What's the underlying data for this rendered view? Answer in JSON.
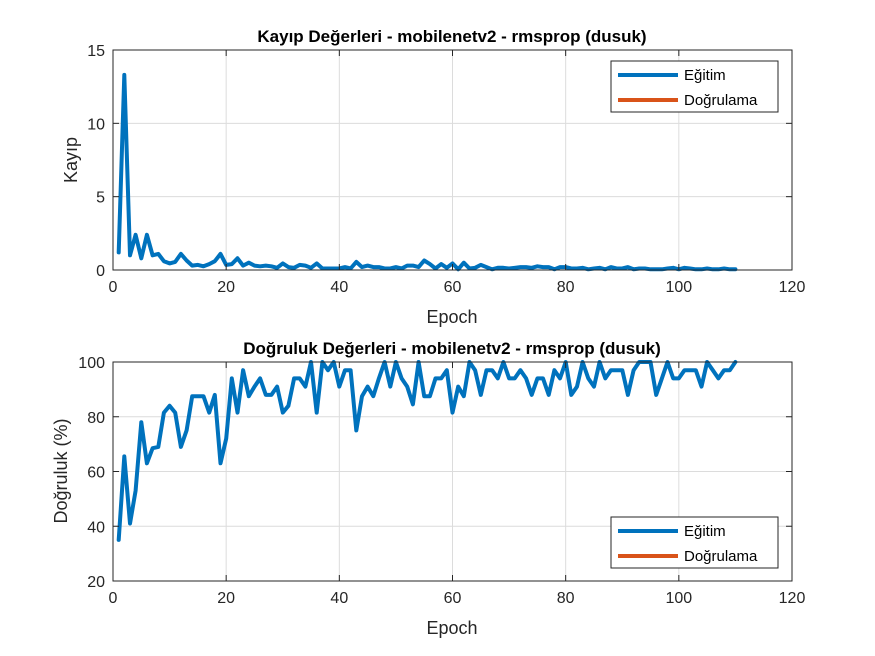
{
  "colors": {
    "train": "#0072BD",
    "val": "#D95319",
    "grid": "#dcdcdc",
    "axis": "#262626"
  },
  "chart_data": [
    {
      "type": "line",
      "title": "Kayıp Değerleri - mobilenetv2 - rmsprop (dusuk)",
      "xlabel": "Epoch",
      "ylabel": "Kayıp",
      "xlim": [
        0,
        120
      ],
      "ylim": [
        0,
        15
      ],
      "xticks": [
        0,
        20,
        40,
        60,
        80,
        100,
        120
      ],
      "yticks": [
        0,
        5,
        10,
        15
      ],
      "grid": true,
      "legend_position": "top-right",
      "legend": [
        "Eğitim",
        "Doğrulama"
      ],
      "series": [
        {
          "name": "Eğitim",
          "x": [
            1,
            2,
            3,
            4,
            5,
            6,
            7,
            8,
            9,
            10,
            11,
            12,
            13,
            14,
            15,
            16,
            17,
            18,
            19,
            20,
            21,
            22,
            23,
            24,
            25,
            26,
            27,
            28,
            29,
            30,
            31,
            32,
            33,
            34,
            35,
            36,
            37,
            38,
            39,
            40,
            41,
            42,
            43,
            44,
            45,
            46,
            47,
            48,
            49,
            50,
            51,
            52,
            53,
            54,
            55,
            56,
            57,
            58,
            59,
            60,
            61,
            62,
            63,
            64,
            65,
            66,
            67,
            68,
            69,
            70,
            71,
            72,
            73,
            74,
            75,
            76,
            77,
            78,
            79,
            80,
            81,
            82,
            83,
            84,
            85,
            86,
            87,
            88,
            89,
            90,
            91,
            92,
            93,
            94,
            95,
            96,
            97,
            98,
            99,
            100,
            101,
            102,
            103,
            104,
            105,
            106,
            107,
            108,
            109,
            110
          ],
          "y": [
            1.2,
            13.3,
            1.0,
            2.4,
            0.8,
            2.4,
            1.0,
            1.1,
            0.6,
            0.45,
            0.55,
            1.1,
            0.65,
            0.3,
            0.35,
            0.25,
            0.4,
            0.6,
            1.1,
            0.35,
            0.4,
            0.8,
            0.3,
            0.5,
            0.3,
            0.25,
            0.3,
            0.25,
            0.15,
            0.45,
            0.2,
            0.15,
            0.35,
            0.3,
            0.15,
            0.45,
            0.1,
            0.1,
            0.1,
            0.1,
            0.2,
            0.1,
            0.55,
            0.2,
            0.3,
            0.2,
            0.2,
            0.1,
            0.1,
            0.2,
            0.1,
            0.3,
            0.3,
            0.2,
            0.65,
            0.4,
            0.1,
            0.4,
            0.15,
            0.45,
            0.05,
            0.5,
            0.1,
            0.15,
            0.35,
            0.2,
            0.05,
            0.15,
            0.15,
            0.1,
            0.15,
            0.2,
            0.2,
            0.15,
            0.25,
            0.2,
            0.2,
            0.05,
            0.2,
            0.2,
            0.1,
            0.1,
            0.15,
            0.05,
            0.1,
            0.15,
            0.05,
            0.2,
            0.1,
            0.1,
            0.2,
            0.05,
            0.1,
            0.1,
            0.05,
            0.05,
            0.05,
            0.1,
            0.15,
            0.05,
            0.15,
            0.1,
            0.05,
            0.05,
            0.1,
            0.05,
            0.05,
            0.1,
            0.05,
            0.05
          ]
        },
        {
          "name": "Doğrulama",
          "x": [],
          "y": []
        }
      ]
    },
    {
      "type": "line",
      "title": "Doğruluk Değerleri - mobilenetv2 - rmsprop (dusuk)",
      "xlabel": "Epoch",
      "ylabel": "Doğruluk (%)",
      "xlim": [
        0,
        120
      ],
      "ylim": [
        20,
        100
      ],
      "xticks": [
        0,
        20,
        40,
        60,
        80,
        100,
        120
      ],
      "yticks": [
        20,
        40,
        60,
        80,
        100
      ],
      "grid": true,
      "legend_position": "bottom-right",
      "legend": [
        "Eğitim",
        "Doğrulama"
      ],
      "series": [
        {
          "name": "Eğitim",
          "x": [
            1,
            2,
            3,
            4,
            5,
            6,
            7,
            8,
            9,
            10,
            11,
            12,
            13,
            14,
            15,
            16,
            17,
            18,
            19,
            20,
            21,
            22,
            23,
            24,
            25,
            26,
            27,
            28,
            29,
            30,
            31,
            32,
            33,
            34,
            35,
            36,
            37,
            38,
            39,
            40,
            41,
            42,
            43,
            44,
            45,
            46,
            47,
            48,
            49,
            50,
            51,
            52,
            53,
            54,
            55,
            56,
            57,
            58,
            59,
            60,
            61,
            62,
            63,
            64,
            65,
            66,
            67,
            68,
            69,
            70,
            71,
            72,
            73,
            74,
            75,
            76,
            77,
            78,
            79,
            80,
            81,
            82,
            83,
            84,
            85,
            86,
            87,
            88,
            89,
            90,
            91,
            92,
            93,
            94,
            95,
            96,
            97,
            98,
            99,
            100,
            101,
            102,
            103,
            104,
            105,
            106,
            107,
            108,
            109,
            110
          ],
          "y": [
            35,
            65.5,
            41,
            53,
            78,
            63,
            68.5,
            69,
            81.5,
            84,
            81.5,
            69,
            75,
            87.5,
            87.5,
            87.5,
            81.5,
            88,
            63,
            72,
            94,
            81.5,
            97,
            87.5,
            91,
            94,
            88,
            88,
            91,
            81.5,
            84,
            94,
            94,
            91,
            100,
            81.5,
            100,
            97,
            100,
            91,
            97,
            97,
            75,
            87.5,
            91,
            87.5,
            94,
            100,
            91,
            100,
            94,
            91,
            84.5,
            100,
            87.5,
            87.5,
            94,
            94,
            97,
            81.5,
            91,
            87.5,
            100,
            97,
            88,
            97,
            97,
            94,
            100,
            94,
            94,
            97,
            94,
            88,
            94,
            94,
            88,
            97,
            94,
            100,
            88,
            91,
            100,
            94,
            91,
            100,
            94,
            97,
            97,
            97,
            88,
            97,
            100,
            100,
            100,
            88,
            94,
            100,
            94,
            94,
            97,
            97,
            97,
            91,
            100,
            97,
            94,
            97,
            97,
            100
          ]
        },
        {
          "name": "Doğrulama",
          "x": [],
          "y": []
        }
      ]
    }
  ]
}
